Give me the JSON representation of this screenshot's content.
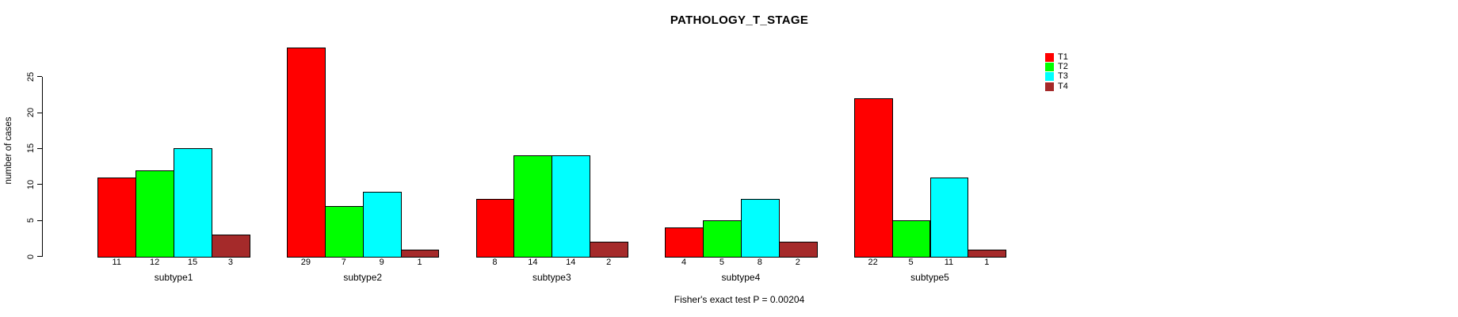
{
  "chart_data": {
    "type": "bar",
    "title": "PATHOLOGY_T_STAGE",
    "ylabel": "number of cases",
    "xlabel": "",
    "annotation": "Fisher's exact test P = 0.00204",
    "categories": [
      "subtype1",
      "subtype2",
      "subtype3",
      "subtype4",
      "subtype5"
    ],
    "series": [
      {
        "name": "T1",
        "color": "#FF0000",
        "values": [
          11,
          29,
          8,
          4,
          22
        ]
      },
      {
        "name": "T2",
        "color": "#00FF00",
        "values": [
          12,
          7,
          14,
          5,
          5
        ]
      },
      {
        "name": "T3",
        "color": "#00FFFF",
        "values": [
          15,
          9,
          14,
          8,
          11
        ]
      },
      {
        "name": "T4",
        "color": "#A52A2A",
        "values": [
          3,
          1,
          2,
          2,
          1
        ]
      }
    ],
    "yticks": [
      0,
      5,
      10,
      15,
      20,
      25
    ],
    "ylim": [
      0,
      29
    ],
    "grid": false,
    "bar_value_labels_shown": true,
    "legend_position": "right",
    "background_color": "#FFFFFF",
    "axis_color": "#000000"
  }
}
